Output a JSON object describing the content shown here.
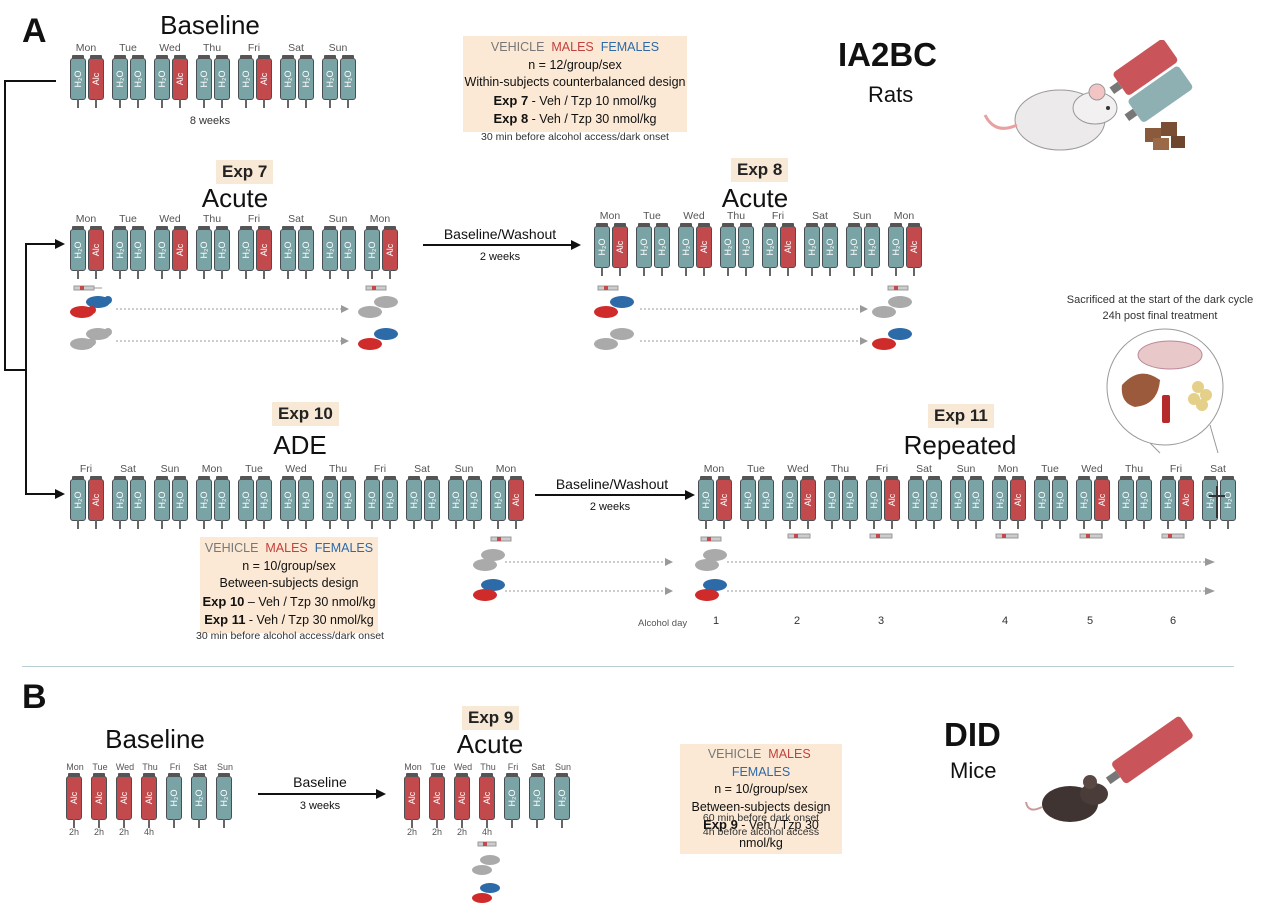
{
  "panel_a": {
    "letter": "A",
    "model_title": "IA2BC",
    "model_subtitle": "Rats",
    "baseline": {
      "title": "Baseline",
      "days": [
        "Mon",
        "Tue",
        "Wed",
        "Thu",
        "Fri",
        "Sat",
        "Sun"
      ],
      "alc_days": [
        0,
        2,
        4
      ],
      "duration": "8 weeks"
    },
    "info_box": {
      "vehicle": "VEHICLE",
      "males": "MALES",
      "females": "FEMALES",
      "n": "n = 12/group/sex",
      "design": "Within-subjects counterbalanced design",
      "exp7_label": "Exp 7",
      "exp7_text": "- Veh / Tzp 10 nmol/kg",
      "exp8_label": "Exp 8",
      "exp8_text": "- Veh / Tzp 30 nmol/kg",
      "timing": "30 min before alcohol access/dark onset"
    },
    "exp7": {
      "badge": "Exp 7",
      "title": "Acute",
      "days": [
        "Mon",
        "Tue",
        "Wed",
        "Thu",
        "Fri",
        "Sat",
        "Sun",
        "Mon"
      ],
      "alc_days": [
        0,
        2,
        4,
        7
      ]
    },
    "washout1": {
      "label": "Baseline/Washout",
      "duration": "2 weeks"
    },
    "exp8": {
      "badge": "Exp 8",
      "title": "Acute",
      "days": [
        "Mon",
        "Tue",
        "Wed",
        "Thu",
        "Fri",
        "Sat",
        "Sun",
        "Mon"
      ],
      "alc_days": [
        0,
        2,
        4,
        7
      ]
    },
    "sacrifice": {
      "line1": "Sacrificed at the start of the dark cycle",
      "line2": "24h post final treatment"
    },
    "exp10": {
      "badge": "Exp 10",
      "title": "ADE",
      "days": [
        "Fri",
        "Sat",
        "Sun",
        "Mon",
        "Tue",
        "Wed",
        "Thu",
        "Fri",
        "Sat",
        "Sun",
        "Mon"
      ],
      "alc_days": [
        0,
        10
      ]
    },
    "washout2": {
      "label": "Baseline/Washout",
      "duration": "2 weeks"
    },
    "exp11": {
      "badge": "Exp 11",
      "title": "Repeated",
      "days": [
        "Mon",
        "Tue",
        "Wed",
        "Thu",
        "Fri",
        "Sat",
        "Sun",
        "Mon",
        "Tue",
        "Wed",
        "Thu",
        "Fri",
        "Sat"
      ],
      "alc_days": [
        0,
        2,
        4,
        7,
        9,
        11
      ],
      "alcohol_day_label": "Alcohol day",
      "alcohol_days": [
        "1",
        "2",
        "3",
        "4",
        "5",
        "6"
      ]
    },
    "info_box2": {
      "vehicle": "VEHICLE",
      "males": "MALES",
      "females": "FEMALES",
      "n": "n = 10/group/sex",
      "design": "Between-subjects design",
      "exp10_label": "Exp 10",
      "exp10_text": "– Veh / Tzp 30 nmol/kg",
      "exp11_label": "Exp 11",
      "exp11_text": "- Veh / Tzp 30 nmol/kg",
      "timing": "30 min before alcohol access/dark onset"
    }
  },
  "panel_b": {
    "letter": "B",
    "model_title": "DID",
    "model_subtitle": "Mice",
    "baseline": {
      "title": "Baseline",
      "days": [
        "Mon",
        "Tue",
        "Wed",
        "Thu",
        "Fri",
        "Sat",
        "Sun"
      ],
      "alc_days": [
        0,
        1,
        2,
        3
      ],
      "hours": [
        "2h",
        "2h",
        "2h",
        "4h"
      ]
    },
    "arrow": {
      "label": "Baseline",
      "duration": "3 weeks"
    },
    "exp9": {
      "badge": "Exp 9",
      "title": "Acute",
      "days": [
        "Mon",
        "Tue",
        "Wed",
        "Thu",
        "Fri",
        "Sat",
        "Sun"
      ],
      "alc_days": [
        0,
        1,
        2,
        3
      ],
      "hours": [
        "2h",
        "2h",
        "2h",
        "4h"
      ]
    },
    "info_box": {
      "vehicle": "VEHICLE",
      "males": "MALES",
      "females": "FEMALES",
      "n": "n = 10/group/sex",
      "design": "Between-subjects design",
      "exp9_label": "Exp 9",
      "exp9_text": "- Veh / Tzp 30 nmol/kg",
      "timing1": "60 min before dark onset",
      "timing2": "4h before alcohol access"
    }
  },
  "bottle_labels": {
    "water": "H₂O",
    "alcohol": "Alc"
  },
  "colors": {
    "water": "#7aa3a6",
    "alcohol": "#c24a4d",
    "male": "#c2403d",
    "female": "#2c6aa8",
    "vehicle": "#888888",
    "box": "#fbe9d5"
  }
}
